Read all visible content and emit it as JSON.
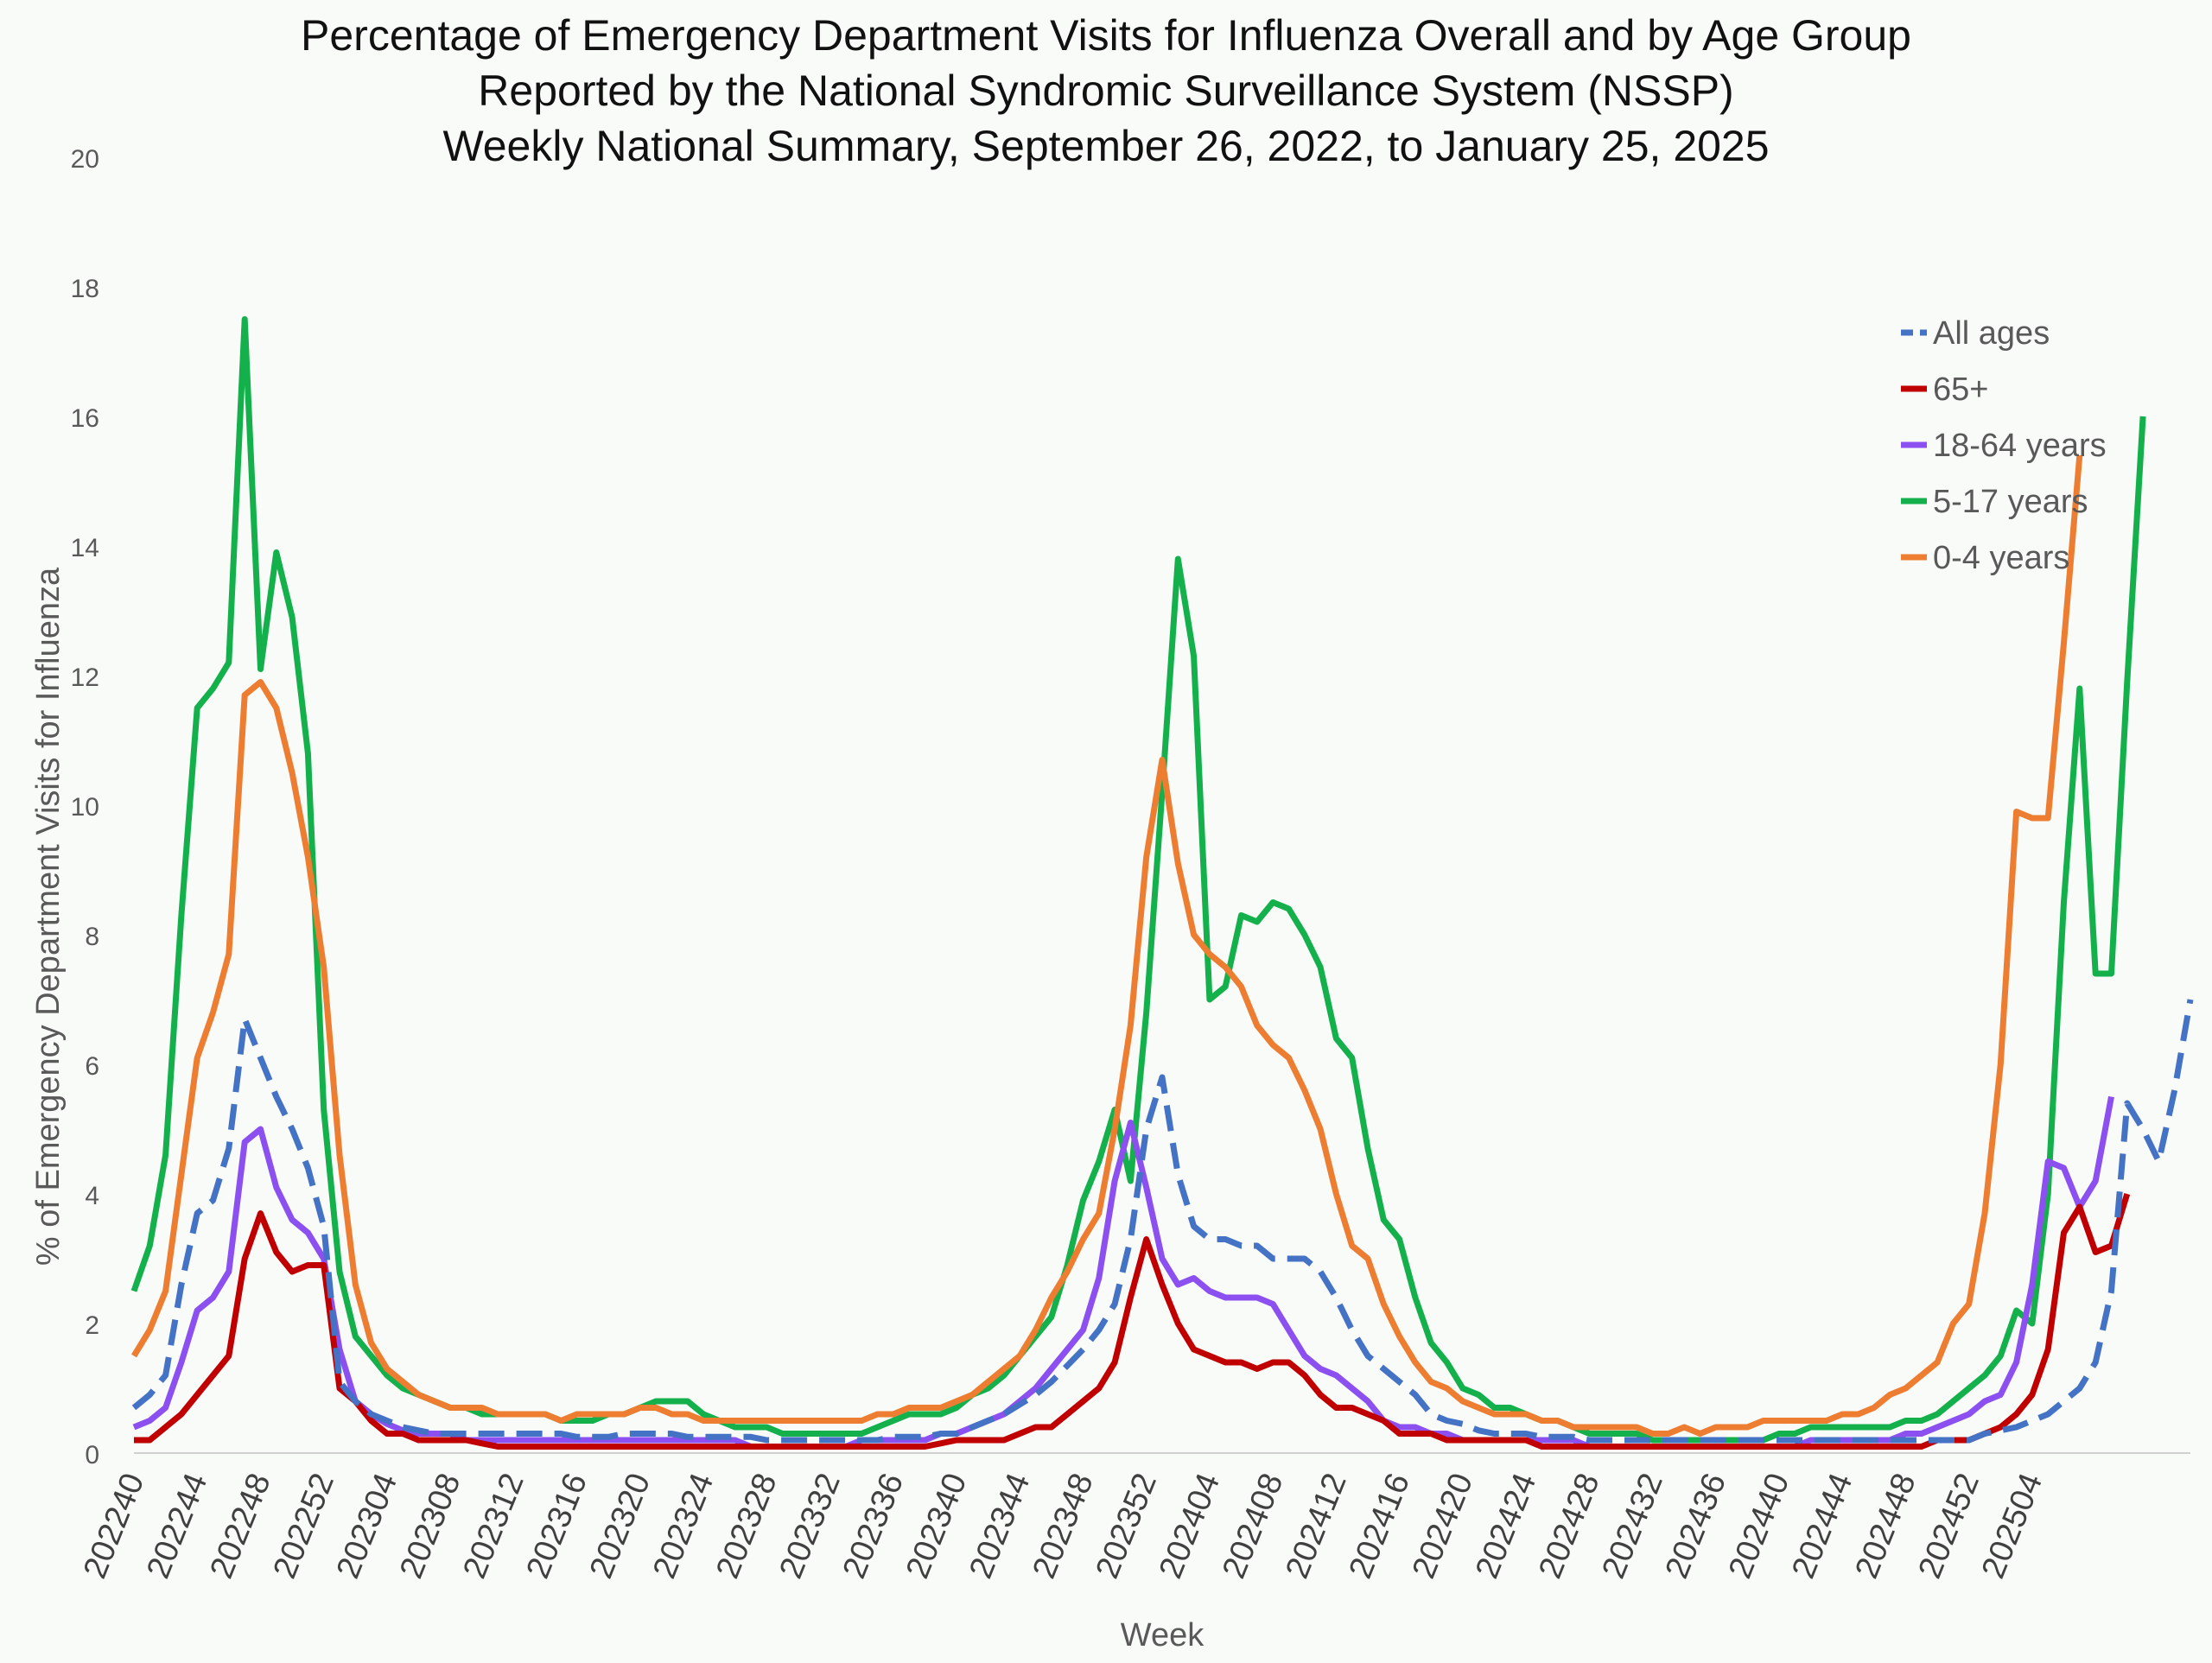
{
  "chart_data": {
    "type": "line",
    "title": [
      "Percentage of Emergency Department Visits for Influenza Overall and by Age Group",
      "Reported by the National Syndromic Surveillance System (NSSP)",
      "Weekly National Summary, September 26, 2022, to January 25, 2025"
    ],
    "xlabel": "Week",
    "ylabel": "% of Emergency Department Visits for Influenza",
    "ylim": [
      0,
      20
    ],
    "yticks": [
      0,
      2,
      4,
      6,
      8,
      10,
      12,
      14,
      16,
      18,
      20
    ],
    "grid": false,
    "legend_position": "top-right",
    "x_start": "202240",
    "x_tick_labels": [
      "202240",
      "202244",
      "202248",
      "202252",
      "202304",
      "202308",
      "202312",
      "202316",
      "202320",
      "202324",
      "202328",
      "202332",
      "202336",
      "202340",
      "202344",
      "202348",
      "202352",
      "202404",
      "202408",
      "202412",
      "202416",
      "202420",
      "202424",
      "202428",
      "202432",
      "202436",
      "202440",
      "202444",
      "202448",
      "202452",
      "202504"
    ],
    "series": [
      {
        "name": "All ages",
        "color": "#4472c4",
        "dash": true,
        "values": [
          0.7,
          0.9,
          1.2,
          2.6,
          3.7,
          3.9,
          4.7,
          6.7,
          6.1,
          5.5,
          5.0,
          4.4,
          3.5,
          1.1,
          0.8,
          0.6,
          0.5,
          0.4,
          0.35,
          0.3,
          0.3,
          0.3,
          0.3,
          0.3,
          0.3,
          0.3,
          0.3,
          0.3,
          0.25,
          0.25,
          0.25,
          0.3,
          0.3,
          0.3,
          0.3,
          0.25,
          0.25,
          0.25,
          0.25,
          0.25,
          0.2,
          0.2,
          0.2,
          0.2,
          0.2,
          0.2,
          0.2,
          0.2,
          0.25,
          0.25,
          0.25,
          0.3,
          0.3,
          0.4,
          0.5,
          0.6,
          0.75,
          0.9,
          1.1,
          1.35,
          1.6,
          1.9,
          2.3,
          3.3,
          5.0,
          5.8,
          4.3,
          3.5,
          3.3,
          3.3,
          3.2,
          3.2,
          3.0,
          3.0,
          3.0,
          2.8,
          2.4,
          1.9,
          1.5,
          1.3,
          1.1,
          0.9,
          0.6,
          0.5,
          0.45,
          0.35,
          0.3,
          0.3,
          0.3,
          0.25,
          0.25,
          0.25,
          0.2,
          0.2,
          0.2,
          0.2,
          0.2,
          0.2,
          0.2,
          0.2,
          0.2,
          0.2,
          0.2,
          0.2,
          0.2,
          0.2,
          0.2,
          0.2,
          0.2,
          0.2,
          0.2,
          0.2,
          0.2,
          0.2,
          0.2,
          0.2,
          0.2,
          0.3,
          0.35,
          0.4,
          0.5,
          0.6,
          0.8,
          1.0,
          1.4,
          2.5,
          5.4,
          5.0,
          4.5,
          5.6,
          7.0
        ]
      },
      {
        "name": "65+",
        "color": "#c00000",
        "dash": false,
        "values": [
          0.2,
          0.2,
          0.4,
          0.6,
          0.9,
          1.2,
          1.5,
          3.0,
          3.7,
          3.1,
          2.8,
          2.9,
          2.9,
          1.0,
          0.8,
          0.5,
          0.3,
          0.3,
          0.2,
          0.2,
          0.2,
          0.2,
          0.15,
          0.1,
          0.1,
          0.1,
          0.1,
          0.1,
          0.1,
          0.1,
          0.1,
          0.1,
          0.1,
          0.1,
          0.1,
          0.1,
          0.1,
          0.1,
          0.1,
          0.1,
          0.1,
          0.1,
          0.1,
          0.1,
          0.1,
          0.1,
          0.1,
          0.1,
          0.1,
          0.1,
          0.1,
          0.15,
          0.2,
          0.2,
          0.2,
          0.2,
          0.3,
          0.4,
          0.4,
          0.6,
          0.8,
          1.0,
          1.4,
          2.4,
          3.3,
          2.6,
          2.0,
          1.6,
          1.5,
          1.4,
          1.4,
          1.3,
          1.4,
          1.4,
          1.2,
          0.9,
          0.7,
          0.7,
          0.6,
          0.5,
          0.3,
          0.3,
          0.3,
          0.2,
          0.2,
          0.2,
          0.2,
          0.2,
          0.2,
          0.1,
          0.1,
          0.1,
          0.1,
          0.1,
          0.1,
          0.1,
          0.1,
          0.1,
          0.1,
          0.1,
          0.1,
          0.1,
          0.1,
          0.1,
          0.1,
          0.1,
          0.1,
          0.1,
          0.1,
          0.1,
          0.1,
          0.1,
          0.1,
          0.1,
          0.2,
          0.2,
          0.2,
          0.3,
          0.4,
          0.6,
          0.9,
          1.6,
          3.4,
          3.8,
          3.1,
          3.2,
          4.0
        ]
      },
      {
        "name": "18-64 years",
        "color": "#8c4ff0",
        "dash": false,
        "values": [
          0.4,
          0.5,
          0.7,
          1.4,
          2.2,
          2.4,
          2.8,
          4.8,
          5.0,
          4.1,
          3.6,
          3.4,
          3.0,
          1.6,
          0.8,
          0.6,
          0.45,
          0.35,
          0.3,
          0.3,
          0.3,
          0.2,
          0.2,
          0.2,
          0.2,
          0.2,
          0.2,
          0.2,
          0.2,
          0.2,
          0.2,
          0.2,
          0.2,
          0.2,
          0.2,
          0.2,
          0.2,
          0.2,
          0.2,
          0.1,
          0.1,
          0.1,
          0.1,
          0.1,
          0.1,
          0.1,
          0.2,
          0.2,
          0.2,
          0.2,
          0.2,
          0.3,
          0.3,
          0.4,
          0.5,
          0.6,
          0.8,
          1.0,
          1.3,
          1.6,
          1.9,
          2.7,
          4.2,
          5.1,
          4.1,
          3.0,
          2.6,
          2.7,
          2.5,
          2.4,
          2.4,
          2.4,
          2.3,
          1.9,
          1.5,
          1.3,
          1.2,
          1.0,
          0.8,
          0.5,
          0.4,
          0.4,
          0.3,
          0.3,
          0.2,
          0.2,
          0.2,
          0.2,
          0.2,
          0.2,
          0.2,
          0.2,
          0.1,
          0.1,
          0.1,
          0.1,
          0.1,
          0.1,
          0.1,
          0.1,
          0.1,
          0.1,
          0.1,
          0.1,
          0.1,
          0.1,
          0.2,
          0.2,
          0.2,
          0.2,
          0.2,
          0.2,
          0.3,
          0.3,
          0.4,
          0.5,
          0.6,
          0.8,
          0.9,
          1.4,
          2.6,
          4.5,
          4.4,
          3.8,
          4.2,
          5.5
        ]
      },
      {
        "name": "5-17 years",
        "color": "#14b04b",
        "dash": false,
        "values": [
          2.5,
          3.2,
          4.6,
          8.3,
          11.5,
          11.8,
          12.2,
          17.5,
          12.1,
          13.9,
          12.9,
          10.8,
          5.3,
          2.8,
          1.8,
          1.5,
          1.2,
          1.0,
          0.9,
          0.8,
          0.7,
          0.7,
          0.6,
          0.6,
          0.6,
          0.6,
          0.6,
          0.5,
          0.5,
          0.5,
          0.6,
          0.6,
          0.7,
          0.8,
          0.8,
          0.8,
          0.6,
          0.5,
          0.4,
          0.4,
          0.4,
          0.3,
          0.3,
          0.3,
          0.3,
          0.3,
          0.3,
          0.4,
          0.5,
          0.6,
          0.6,
          0.6,
          0.7,
          0.9,
          1.0,
          1.2,
          1.5,
          1.8,
          2.1,
          2.9,
          3.9,
          4.5,
          5.3,
          4.2,
          6.8,
          10.2,
          13.8,
          12.3,
          7.0,
          7.2,
          8.3,
          8.2,
          8.5,
          8.4,
          8.0,
          7.5,
          6.4,
          6.1,
          4.7,
          3.6,
          3.3,
          2.4,
          1.7,
          1.4,
          1.0,
          0.9,
          0.7,
          0.7,
          0.6,
          0.5,
          0.5,
          0.4,
          0.3,
          0.3,
          0.3,
          0.3,
          0.2,
          0.2,
          0.2,
          0.2,
          0.2,
          0.2,
          0.2,
          0.2,
          0.3,
          0.3,
          0.4,
          0.4,
          0.4,
          0.4,
          0.4,
          0.4,
          0.5,
          0.5,
          0.6,
          0.8,
          1.0,
          1.2,
          1.5,
          2.2,
          2.0,
          4.0,
          8.5,
          11.8,
          7.4,
          7.4,
          11.9,
          16.0
        ]
      },
      {
        "name": "0-4 years",
        "color": "#ed7d31",
        "dash": false,
        "values": [
          1.5,
          1.9,
          2.5,
          4.3,
          6.1,
          6.8,
          7.7,
          11.7,
          11.9,
          11.5,
          10.5,
          9.2,
          7.5,
          4.6,
          2.6,
          1.7,
          1.3,
          1.1,
          0.9,
          0.8,
          0.7,
          0.7,
          0.7,
          0.6,
          0.6,
          0.6,
          0.6,
          0.5,
          0.6,
          0.6,
          0.6,
          0.6,
          0.7,
          0.7,
          0.6,
          0.6,
          0.5,
          0.5,
          0.5,
          0.5,
          0.5,
          0.5,
          0.5,
          0.5,
          0.5,
          0.5,
          0.5,
          0.6,
          0.6,
          0.7,
          0.7,
          0.7,
          0.8,
          0.9,
          1.1,
          1.3,
          1.5,
          1.9,
          2.4,
          2.8,
          3.3,
          3.7,
          5.0,
          6.6,
          9.2,
          10.7,
          9.1,
          8.0,
          7.7,
          7.5,
          7.2,
          6.6,
          6.3,
          6.1,
          5.6,
          5.0,
          4.0,
          3.2,
          3.0,
          2.3,
          1.8,
          1.4,
          1.1,
          1.0,
          0.8,
          0.7,
          0.6,
          0.6,
          0.6,
          0.5,
          0.5,
          0.4,
          0.4,
          0.4,
          0.4,
          0.4,
          0.3,
          0.3,
          0.4,
          0.3,
          0.4,
          0.4,
          0.4,
          0.5,
          0.5,
          0.5,
          0.5,
          0.5,
          0.6,
          0.6,
          0.7,
          0.9,
          1.0,
          1.2,
          1.4,
          2.0,
          2.3,
          3.7,
          6.0,
          9.9,
          9.8,
          9.8,
          12.5,
          15.4
        ]
      }
    ]
  }
}
